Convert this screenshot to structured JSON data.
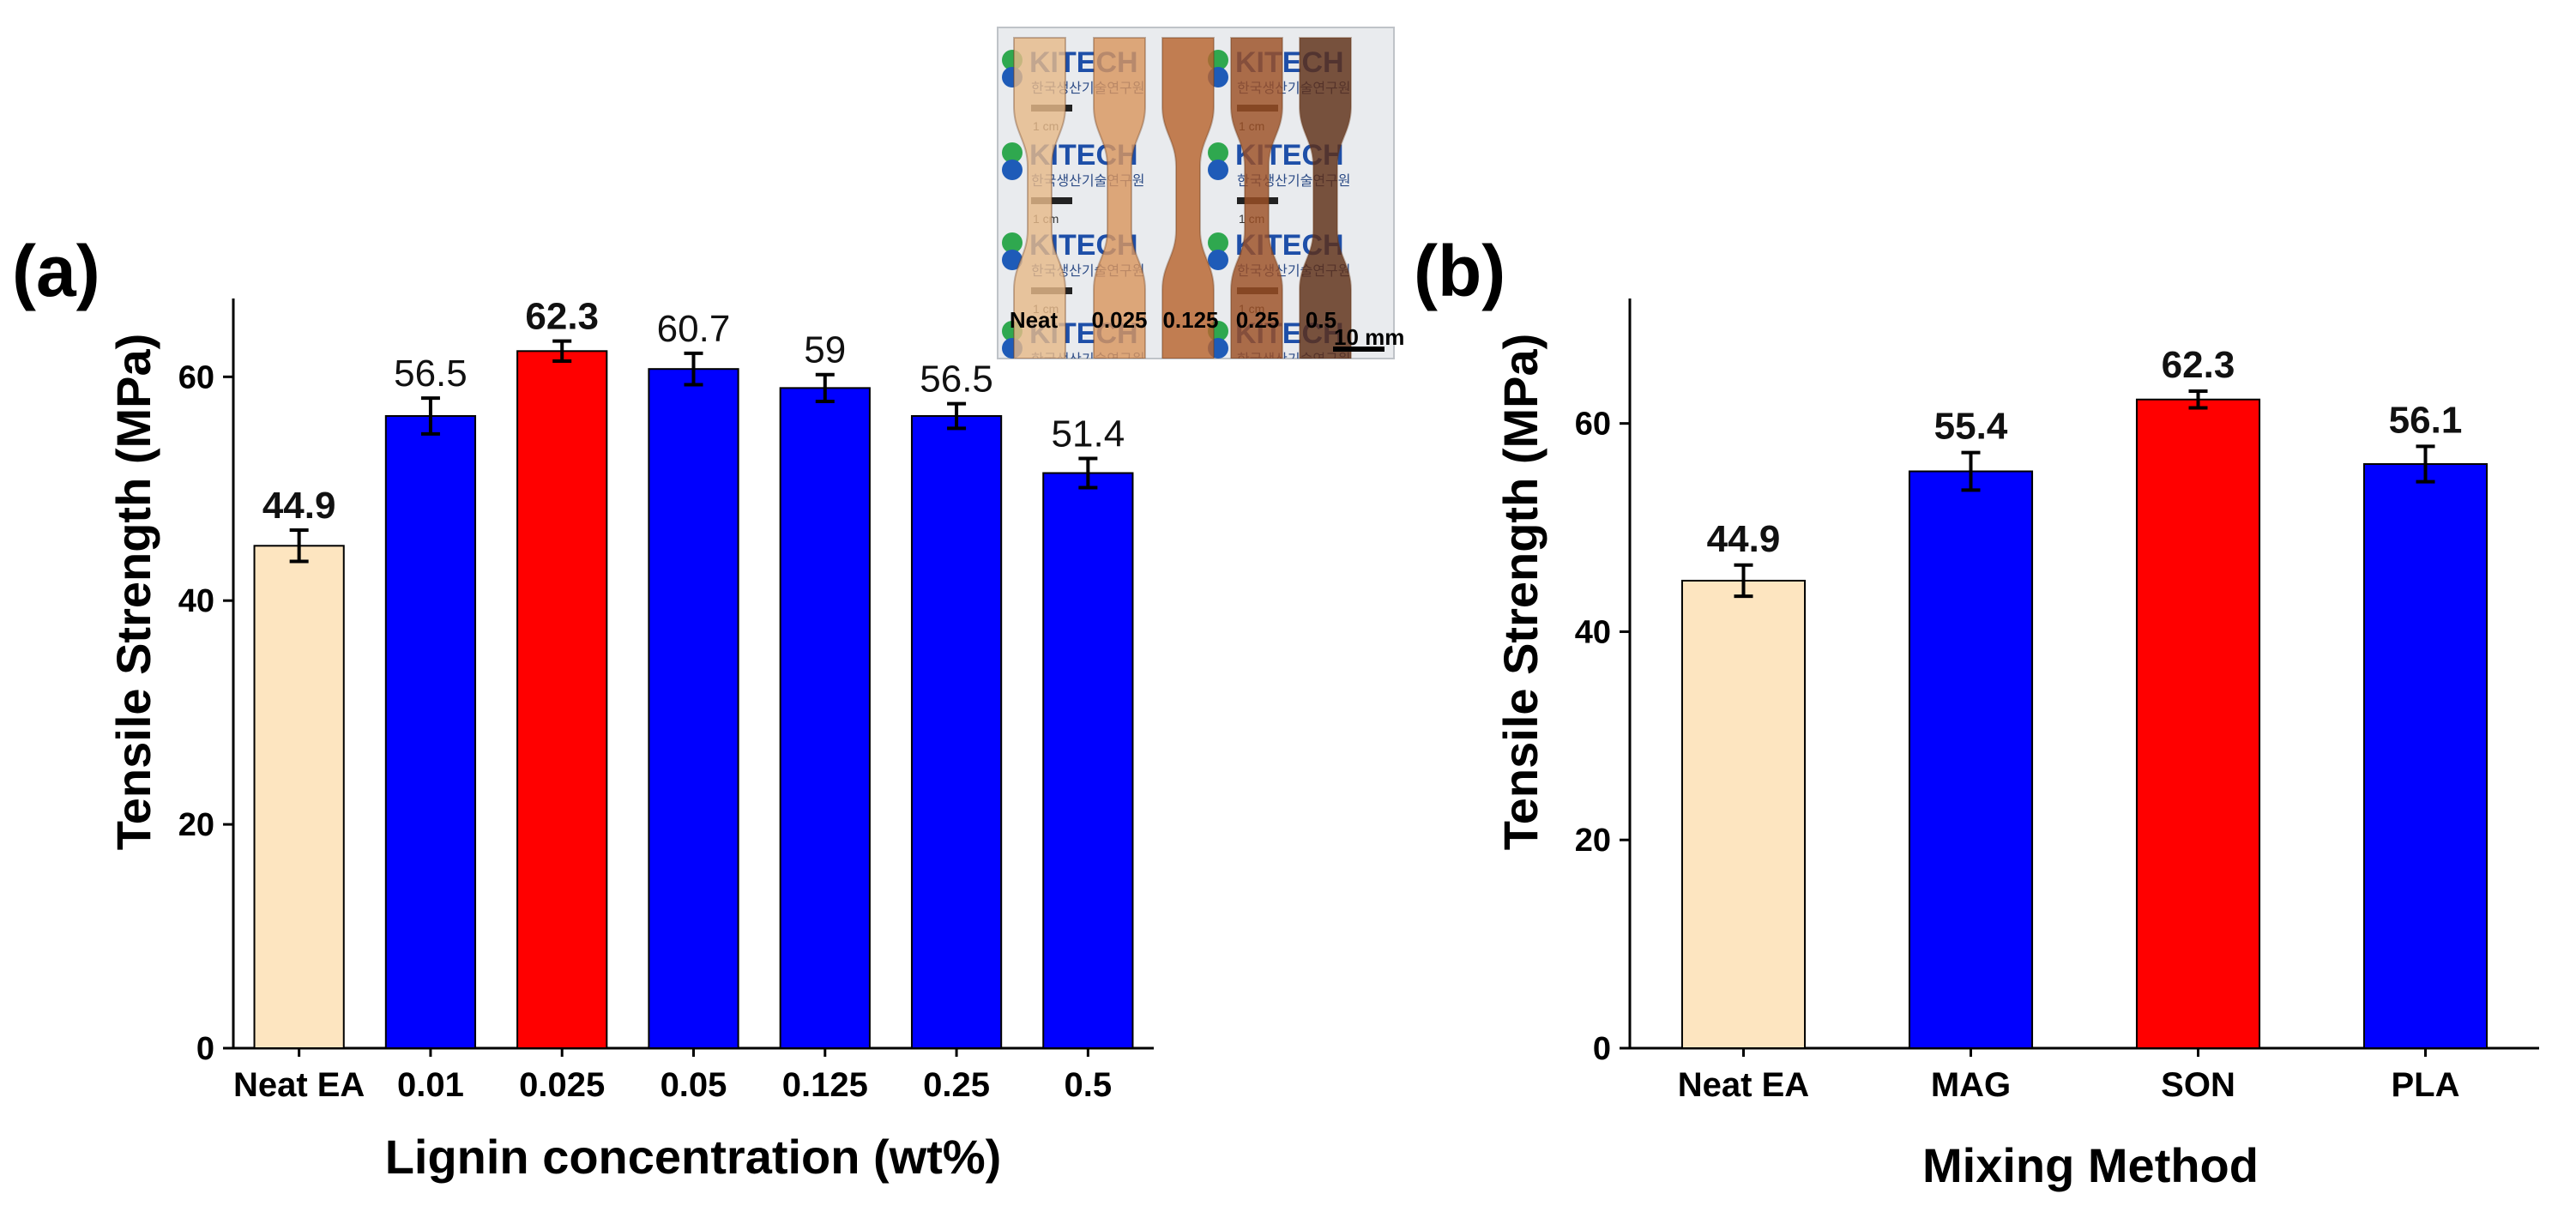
{
  "chart_data": [
    {
      "panel": "(a)",
      "type": "bar",
      "title": "",
      "xlabel": "Lignin concentration (wt%)",
      "ylabel": "Tensile Strength (MPa)",
      "ylim": [
        0,
        67
      ],
      "yticks": [
        0,
        20,
        40,
        60
      ],
      "ytick_labels": [
        "0",
        "20",
        "40",
        "60"
      ],
      "categories": [
        "Neat EA",
        "0.01",
        "0.025",
        "0.05",
        "0.125",
        "0.25",
        "0.5"
      ],
      "values": [
        44.9,
        56.5,
        62.3,
        60.7,
        59,
        56.5,
        51.4
      ],
      "value_labels": [
        "44.9",
        "56.5",
        "62.3",
        "60.7",
        "59",
        "56.5",
        "51.4"
      ],
      "bold_labels": [
        true,
        false,
        true,
        false,
        false,
        false,
        false
      ],
      "errors": [
        1.4,
        1.6,
        0.9,
        1.4,
        1.2,
        1.1,
        1.3
      ],
      "colors": [
        "#FDE5C0",
        "#0000FF",
        "#FF0000",
        "#0000FF",
        "#0000FF",
        "#0000FF",
        "#0000FF"
      ]
    },
    {
      "panel": "(b)",
      "type": "bar",
      "title": "",
      "xlabel": "Mixing Method",
      "ylabel": "Tensile Strength (MPa)",
      "ylim": [
        0,
        72
      ],
      "yticks": [
        0,
        20,
        40,
        60
      ],
      "ytick_labels": [
        "0",
        "20",
        "40",
        "60"
      ],
      "categories": [
        "Neat EA",
        "MAG",
        "SON",
        "PLA"
      ],
      "values": [
        44.9,
        55.4,
        62.3,
        56.1
      ],
      "value_labels": [
        "44.9",
        "55.4",
        "62.3",
        "56.1"
      ],
      "bold_labels": [
        true,
        true,
        true,
        true
      ],
      "errors": [
        1.5,
        1.8,
        0.8,
        1.7
      ],
      "colors": [
        "#FDE5C0",
        "#0000FF",
        "#FF0000",
        "#0000FF"
      ]
    }
  ],
  "inset_photo": {
    "specimen_labels": [
      "Neat",
      "0.025",
      "0.125",
      "0.25",
      "0.5"
    ],
    "scale_bar": "10 mm",
    "specimen_colors": [
      "#E7B98A",
      "#D9965F",
      "#B8642E",
      "#9C4F24",
      "#5E2E16"
    ],
    "background_text": "KITECH",
    "background_subtext": "한국생산기술연구원",
    "background_scale": "1 cm"
  }
}
